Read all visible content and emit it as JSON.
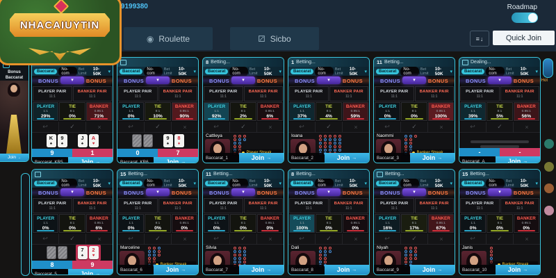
{
  "header": {
    "logo_text": "NHACAIUYTIN",
    "username": "r9199380",
    "tabs": [
      {
        "label": "Roulette",
        "icon": "roulette-wheel"
      },
      {
        "label": "Sicbo",
        "icon": "dice"
      }
    ],
    "roadmap_label": "Roadmap",
    "roadmap_on": true,
    "quick_join_label": "Quick Join"
  },
  "sidebar": {
    "bonus_line1": "Bonus",
    "bonus_line2": "Baccarat",
    "join_label": "Join"
  },
  "right_edge": {
    "hot_label": "Hot"
  },
  "icons": {
    "chevron_down": "▾",
    "undo": "↩",
    "confirm": "✓",
    "cancel": "×",
    "join_arrow": "→",
    "sort_lines": "≡",
    "sort_arrow": "↓",
    "roulette": "◉",
    "sicbo": "⚂"
  },
  "labels": {
    "baccarat_badge": "Baccarat",
    "nocom_badge": "No-com",
    "bet_limit": "Bet Limit",
    "limit": "10-50K",
    "bonus": "BONUS",
    "player_pair": "PLAYER PAIR",
    "banker_pair": "BANKER PAIR",
    "pair_odds": "11:1",
    "player": "PLAYER",
    "tie": "TIE",
    "banker": "BANKER",
    "player_odds": "1:1",
    "tie_odds": "8:1",
    "banker_odds": "0.95:1",
    "join": "Join",
    "betting_status": "Betting...",
    "dealing_status": "Dealing..."
  },
  "colors": {
    "accent": "#3bc4dc",
    "player": "#3fd1e0",
    "tie": "#c8d94a",
    "banker": "#ff5a4e",
    "score_player_bg": "#1f8fc9",
    "score_banker_bg": "#ce3a62",
    "join_bg": "#2ba0d8",
    "bonus_left": "#8f93ff",
    "bonus_right": "#ff7a45"
  },
  "tables": [
    {
      "name": "Baccarat_KR5",
      "timer": "",
      "status": "",
      "pcts": {
        "player": "29%",
        "tie": "0%",
        "banker": "71%"
      },
      "content": {
        "type": "cards",
        "player_cards": [
          {
            "r": "K",
            "s": "♠"
          },
          {
            "r": "9",
            "s": "♠"
          }
        ],
        "banker_cards": [
          {
            "r": "J",
            "s": "♠"
          },
          {
            "r": "A",
            "s": "♥"
          }
        ],
        "winner": "player",
        "score_player": "9",
        "score_banker": "1"
      }
    },
    {
      "name": "Baccarat_KR6",
      "timer": "",
      "status": "",
      "pcts": {
        "player": "0%",
        "tie": "10%",
        "banker": "90%"
      },
      "content": {
        "type": "cards",
        "player_cards": [
          {
            "down": true
          },
          {
            "down": true
          }
        ],
        "banker_cards": [
          {
            "r": "9",
            "s": "♠"
          },
          {
            "r": "8",
            "s": "♦"
          }
        ],
        "winner": "",
        "score_player": "0",
        "score_banker": "7"
      }
    },
    {
      "name": "Baccarat_1",
      "timer": "8",
      "status": "Betting...",
      "pcts": {
        "player": "92%",
        "tie": "2%",
        "banker": "6%"
      },
      "content": {
        "type": "dealer",
        "dealer": "Cattleya",
        "streak": "Player Streak",
        "roadmap": "rrbrbrrbbrrrrb"
      }
    },
    {
      "name": "Baccarat_2",
      "timer": "1",
      "status": "Betting...",
      "pcts": {
        "player": "37%",
        "tie": "4%",
        "banker": "59%"
      },
      "content": {
        "type": "dealer",
        "dealer": "Ioana",
        "streak": "",
        "roadmap": "rrbrbbrbrrbbrbrbbrrbbrbrrbbrb"
      }
    },
    {
      "name": "Baccarat_3",
      "timer": "11",
      "status": "Betting...",
      "pcts": {
        "player": "0%",
        "tie": "0%",
        "banker": "100%"
      },
      "content": {
        "type": "dealer",
        "dealer": "Naommi",
        "streak": "Banker Streak",
        "roadmap": "brbrrbbrrbbrr"
      }
    },
    {
      "name": "Baccarat_A",
      "timer": "",
      "status": "Dealing...",
      "pcts": {
        "player": "39%",
        "tie": "5%",
        "banker": "56%"
      },
      "content": {
        "type": "shuffle",
        "score_player": "-",
        "score_banker": "-"
      }
    },
    {
      "name": "Baccarat_5",
      "timer": "",
      "status": "",
      "pcts": {
        "player": "0%",
        "tie": "0%",
        "banker": "6%"
      },
      "content": {
        "type": "cards",
        "player_cards": [
          {
            "down": true
          },
          {
            "down": true
          }
        ],
        "banker_cards": [
          {
            "r": "7",
            "s": "♠"
          },
          {
            "r": "2",
            "s": "♥"
          }
        ],
        "winner": "banker",
        "score_player": "8",
        "score_banker": "9"
      }
    },
    {
      "name": "Baccarat_6",
      "timer": "15",
      "status": "Betting...",
      "pcts": {
        "player": "0%",
        "tie": "0%",
        "banker": "0%"
      },
      "content": {
        "type": "dealer",
        "dealer": "Marceline",
        "streak": "Banker Streak",
        "roadmap": "rbbrrbrbbrrbbrr"
      }
    },
    {
      "name": "Baccarat_7",
      "timer": "11",
      "status": "Betting...",
      "pcts": {
        "player": "0%",
        "tie": "0%",
        "banker": "0%"
      },
      "content": {
        "type": "dealer",
        "dealer": "Silvia",
        "streak": "",
        "roadmap": "rbrbbrrbrbbrrbbrrb"
      }
    },
    {
      "name": "Baccarat_8",
      "timer": "8",
      "status": "Betting...",
      "pcts": {
        "player": "100%",
        "tie": "0%",
        "banker": "0%"
      },
      "content": {
        "type": "dealer",
        "dealer": "Dali",
        "streak": "",
        "roadmap": "rbrrbbrbbrrbrb"
      }
    },
    {
      "name": "Baccarat_9",
      "timer": "",
      "status": "Betting...",
      "pcts": {
        "player": "16%",
        "tie": "17%",
        "banker": "67%"
      },
      "content": {
        "type": "dealer",
        "dealer": "Niyah",
        "streak": "",
        "roadmap": "rbbrrbrbrrbbrrbr"
      }
    },
    {
      "name": "Baccarat_10",
      "timer": "15",
      "status": "Betting...",
      "pcts": {
        "player": "0%",
        "tie": "0%",
        "banker": "0%"
      },
      "content": {
        "type": "dealer",
        "dealer": "Janis",
        "streak": "Banker Streak",
        "roadmap": "rrrbr"
      }
    }
  ]
}
